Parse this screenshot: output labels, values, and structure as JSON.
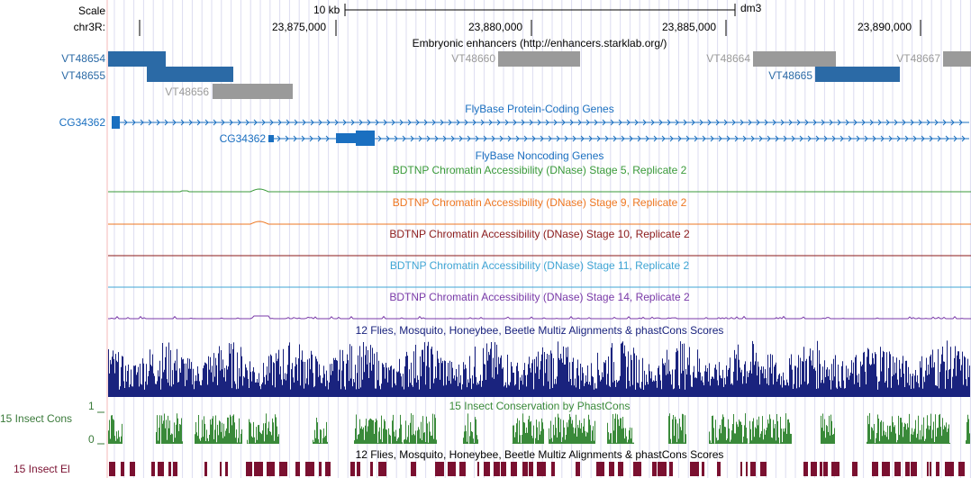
{
  "ruler": {
    "scale_label": "Scale",
    "chrom_label": "chr3R:",
    "scale_bar_label": "10 kb",
    "assembly": "dm3",
    "positions": [
      "23,875,000",
      "23,880,000",
      "23,885,000",
      "23,890,000"
    ]
  },
  "tracks": {
    "enhancers": {
      "title": "Embryonic enhancers (http://enhancers.starklab.org/)",
      "items": [
        {
          "name": "VT48654",
          "start": 120,
          "end": 184,
          "color": "#2b6aa6",
          "label_color": "#2b6aa6"
        },
        {
          "name": "VT48655",
          "start": 163,
          "end": 259,
          "color": "#2b6aa6",
          "label_color": "#2b6aa6"
        },
        {
          "name": "VT48656",
          "start": 236,
          "end": 325,
          "color": "#9a9a9a",
          "label_color": "#9a9a9a"
        },
        {
          "name": "VT48660",
          "start": 553,
          "end": 644,
          "color": "#9a9a9a",
          "label_color": "#9a9a9a"
        },
        {
          "name": "VT48664",
          "start": 836,
          "end": 928,
          "color": "#9a9a9a",
          "label_color": "#9a9a9a"
        },
        {
          "name": "VT48665",
          "start": 905,
          "end": 999,
          "color": "#2b6aa6",
          "label_color": "#2b6aa6"
        },
        {
          "name": "VT48667",
          "start": 1047,
          "end": 1078,
          "color": "#9a9a9a",
          "label_color": "#9a9a9a"
        }
      ]
    },
    "protein_coding": {
      "title": "FlyBase Protein-Coding Genes",
      "color": "#1a6fc0",
      "genes": [
        {
          "name": "CG34362"
        },
        {
          "name": "CG34362"
        }
      ]
    },
    "noncoding": {
      "title": "FlyBase Noncoding Genes",
      "color": "#1a6fc0"
    },
    "dnase": [
      {
        "title": "BDTNP Chromatin Accessibility (DNase) Stage 5, Replicate 2",
        "color": "#3a9a3a"
      },
      {
        "title": "BDTNP Chromatin Accessibility (DNase) Stage 9, Replicate 2",
        "color": "#ee7722"
      },
      {
        "title": "BDTNP Chromatin Accessibility (DNase) Stage 10, Replicate 2",
        "color": "#8b1a1a"
      },
      {
        "title": "BDTNP Chromatin Accessibility (DNase) Stage 11, Replicate 2",
        "color": "#3fa5d4"
      },
      {
        "title": "BDTNP Chromatin Accessibility (DNase) Stage 14, Replicate 2",
        "color": "#7a3aa8"
      }
    ],
    "multiz": {
      "title": "12 Flies, Mosquito, Honeybee, Beetle Multiz Alignments & phastCons Scores",
      "color": "#1a237e"
    },
    "phastcons": {
      "title": "15 Insect Conservation by PhastCons",
      "side_label": "15 Insect Cons",
      "axis_max": "1",
      "axis_min": "0",
      "color": "#3a8a3a",
      "label_color": "#3a7a3a"
    },
    "elements": {
      "title": "12 Flies, Mosquito, Honeybee, Beetle Multiz Alignments & phastCons Scores",
      "side_label": "15 Insect El",
      "color": "#7a1030",
      "label_color": "#7a1030"
    }
  }
}
